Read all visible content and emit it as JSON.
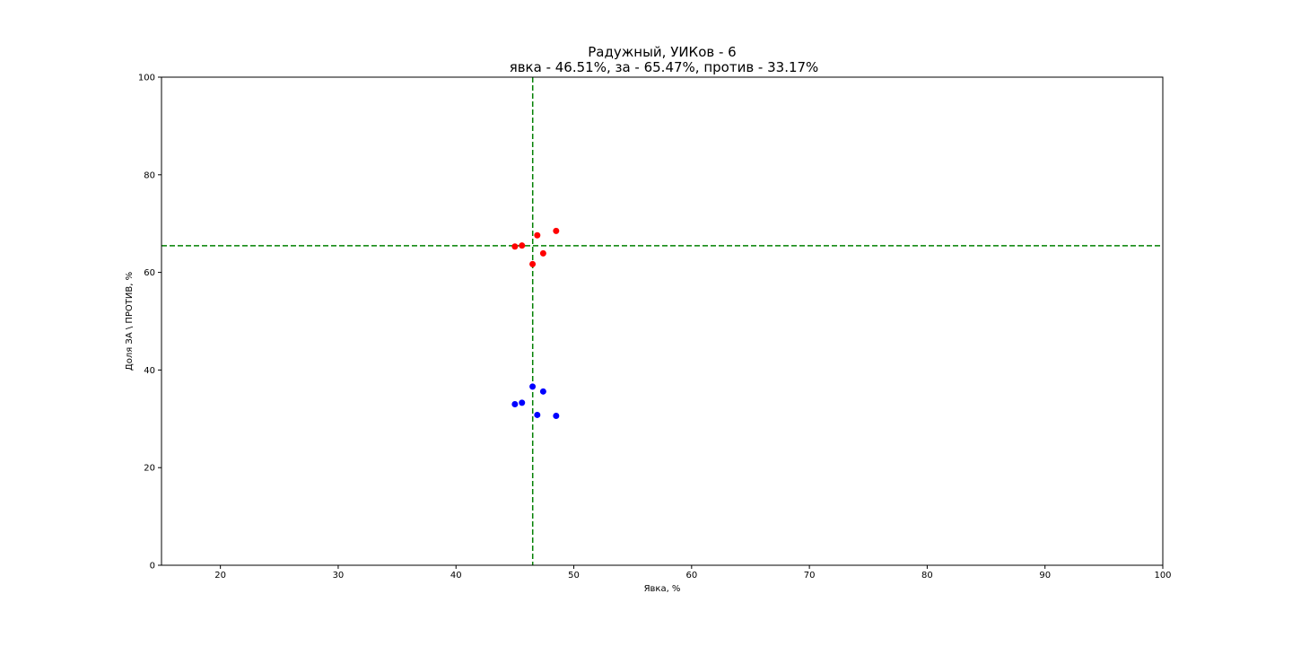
{
  "chart_data": {
    "type": "scatter",
    "title": "Радужный, УИКов - 6",
    "subtitle": "явка - 46.51%, за - 65.47%, против - 33.17%",
    "xlabel": "Явка, %",
    "ylabel": "Доля ЗА \\ ПРОТИВ, %",
    "xlim": [
      15,
      100
    ],
    "ylim": [
      0,
      100
    ],
    "xticks": [
      20,
      30,
      40,
      50,
      60,
      70,
      80,
      90,
      100
    ],
    "yticks": [
      0,
      20,
      40,
      60,
      80,
      100
    ],
    "grid": false,
    "series": [
      {
        "color": "#ff0000",
        "points": [
          {
            "x": 45.0,
            "y": 65.3
          },
          {
            "x": 45.6,
            "y": 65.5
          },
          {
            "x": 46.5,
            "y": 61.7
          },
          {
            "x": 46.9,
            "y": 67.6
          },
          {
            "x": 47.4,
            "y": 63.9
          },
          {
            "x": 48.5,
            "y": 68.5
          }
        ]
      },
      {
        "color": "#0000ff",
        "points": [
          {
            "x": 45.0,
            "y": 33.0
          },
          {
            "x": 45.6,
            "y": 33.3
          },
          {
            "x": 46.5,
            "y": 36.6
          },
          {
            "x": 46.9,
            "y": 30.8
          },
          {
            "x": 47.4,
            "y": 35.6
          },
          {
            "x": 48.5,
            "y": 30.6
          }
        ]
      }
    ],
    "reference_lines": {
      "color": "#008000",
      "style": "dashed",
      "vertical_x": 46.51,
      "horizontal_y": 65.47
    }
  }
}
